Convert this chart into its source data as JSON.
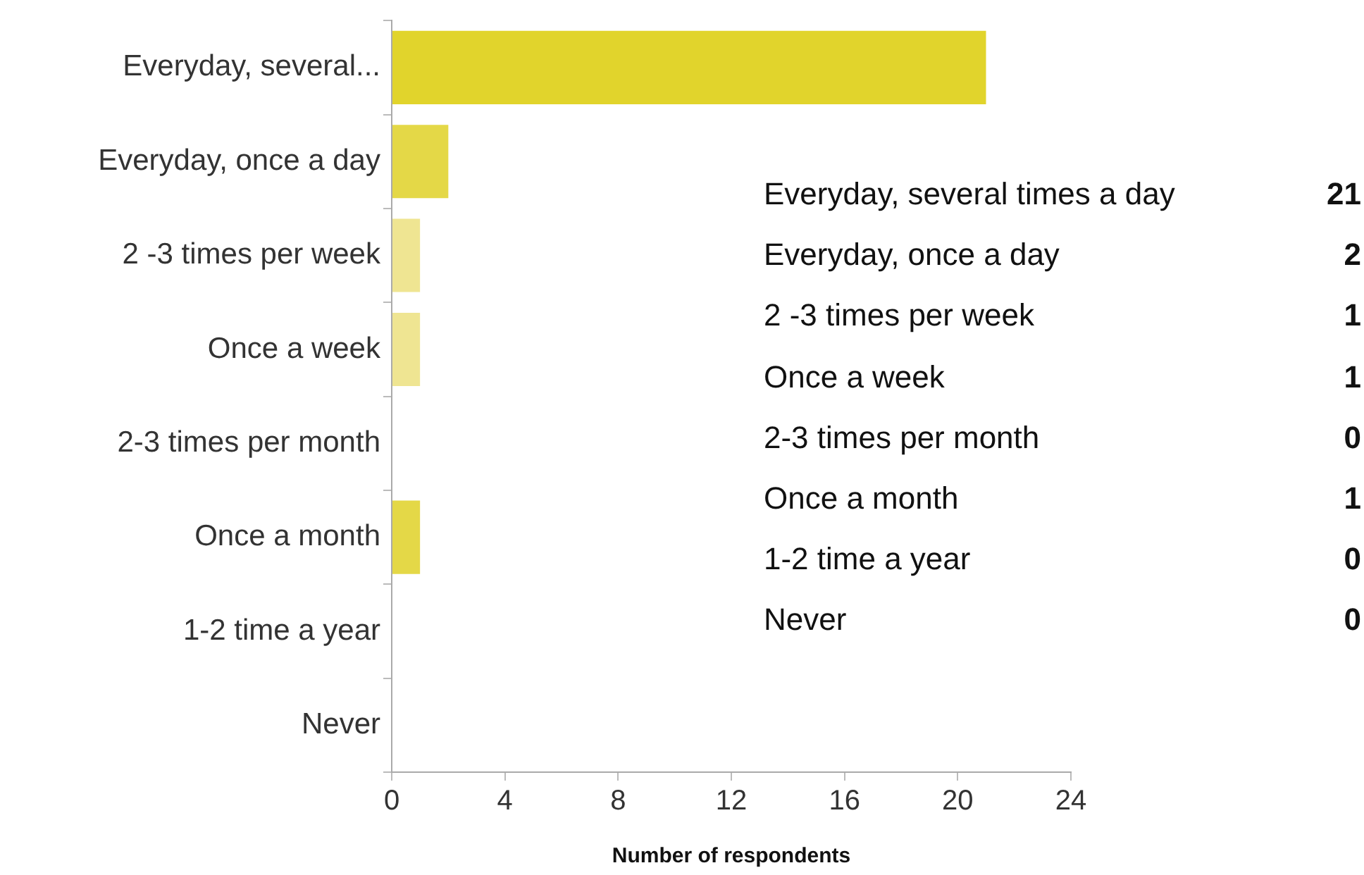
{
  "chart_data": [
    {
      "type": "bar",
      "orientation": "horizontal",
      "xlabel": "Number of respondents",
      "categories": [
        "Everyday, several...",
        "Everyday, once a day",
        "2 -3 times per week",
        "Once a week",
        "2-3 times per month",
        "Once a month",
        "1-2 time a year",
        "Never"
      ],
      "values": [
        21,
        2,
        1,
        1,
        0,
        1,
        0,
        0
      ],
      "colors": [
        "#e1d42c",
        "#e4d847",
        "#efe592",
        "#efe592",
        "#e4d847",
        "#e4d847",
        "#e4d847",
        "#e4d847"
      ],
      "xlim": [
        0,
        24
      ],
      "xticks": [
        0,
        4,
        8,
        12,
        16,
        20,
        24
      ],
      "grid": false,
      "legend": false
    },
    {
      "type": "other",
      "categories": [
        "Everyday, several times a day",
        "Everyday, once a day",
        "2 -3 times per week",
        "Once a week",
        "2-3 times per month",
        "Once a month",
        "1-2 time a year",
        "Never"
      ],
      "values": [
        21,
        2,
        1,
        1,
        0,
        1,
        0,
        0
      ],
      "data_labels": true
    }
  ]
}
